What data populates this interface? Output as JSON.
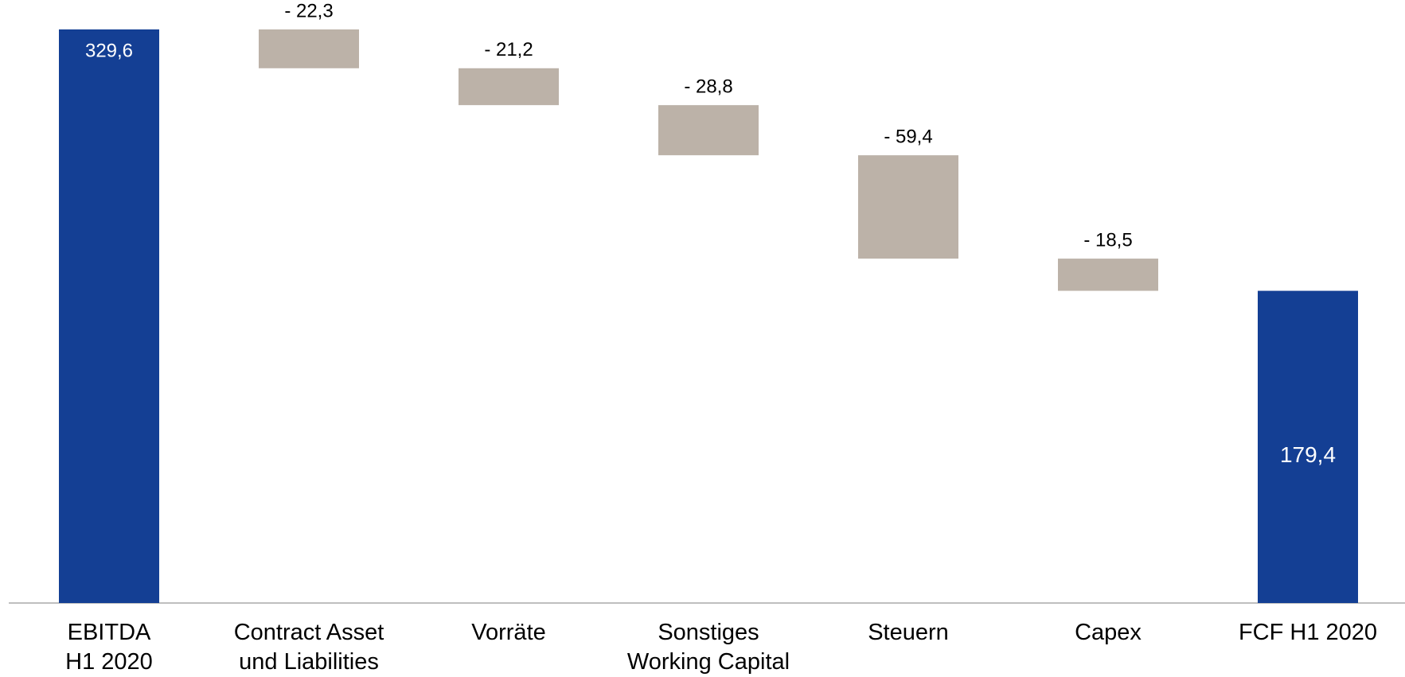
{
  "chart_data": {
    "type": "waterfall",
    "categories": [
      "EBITDA\nH1 2020",
      "Contract Asset\nund Liabilities",
      "Vorräte",
      "Sonstiges\nWorking Capital",
      "Steuern",
      "Capex",
      "FCF H1 2020"
    ],
    "values": [
      329.6,
      -22.3,
      -21.2,
      -28.8,
      -59.4,
      -18.5,
      179.4
    ],
    "value_labels": [
      "329,6",
      "- 22,3",
      "- 21,2",
      "- 28,8",
      "- 59,4",
      "- 18,5",
      "179,4"
    ],
    "colors": {
      "total": "#143f94",
      "decrease": "#bcb2a8"
    }
  }
}
